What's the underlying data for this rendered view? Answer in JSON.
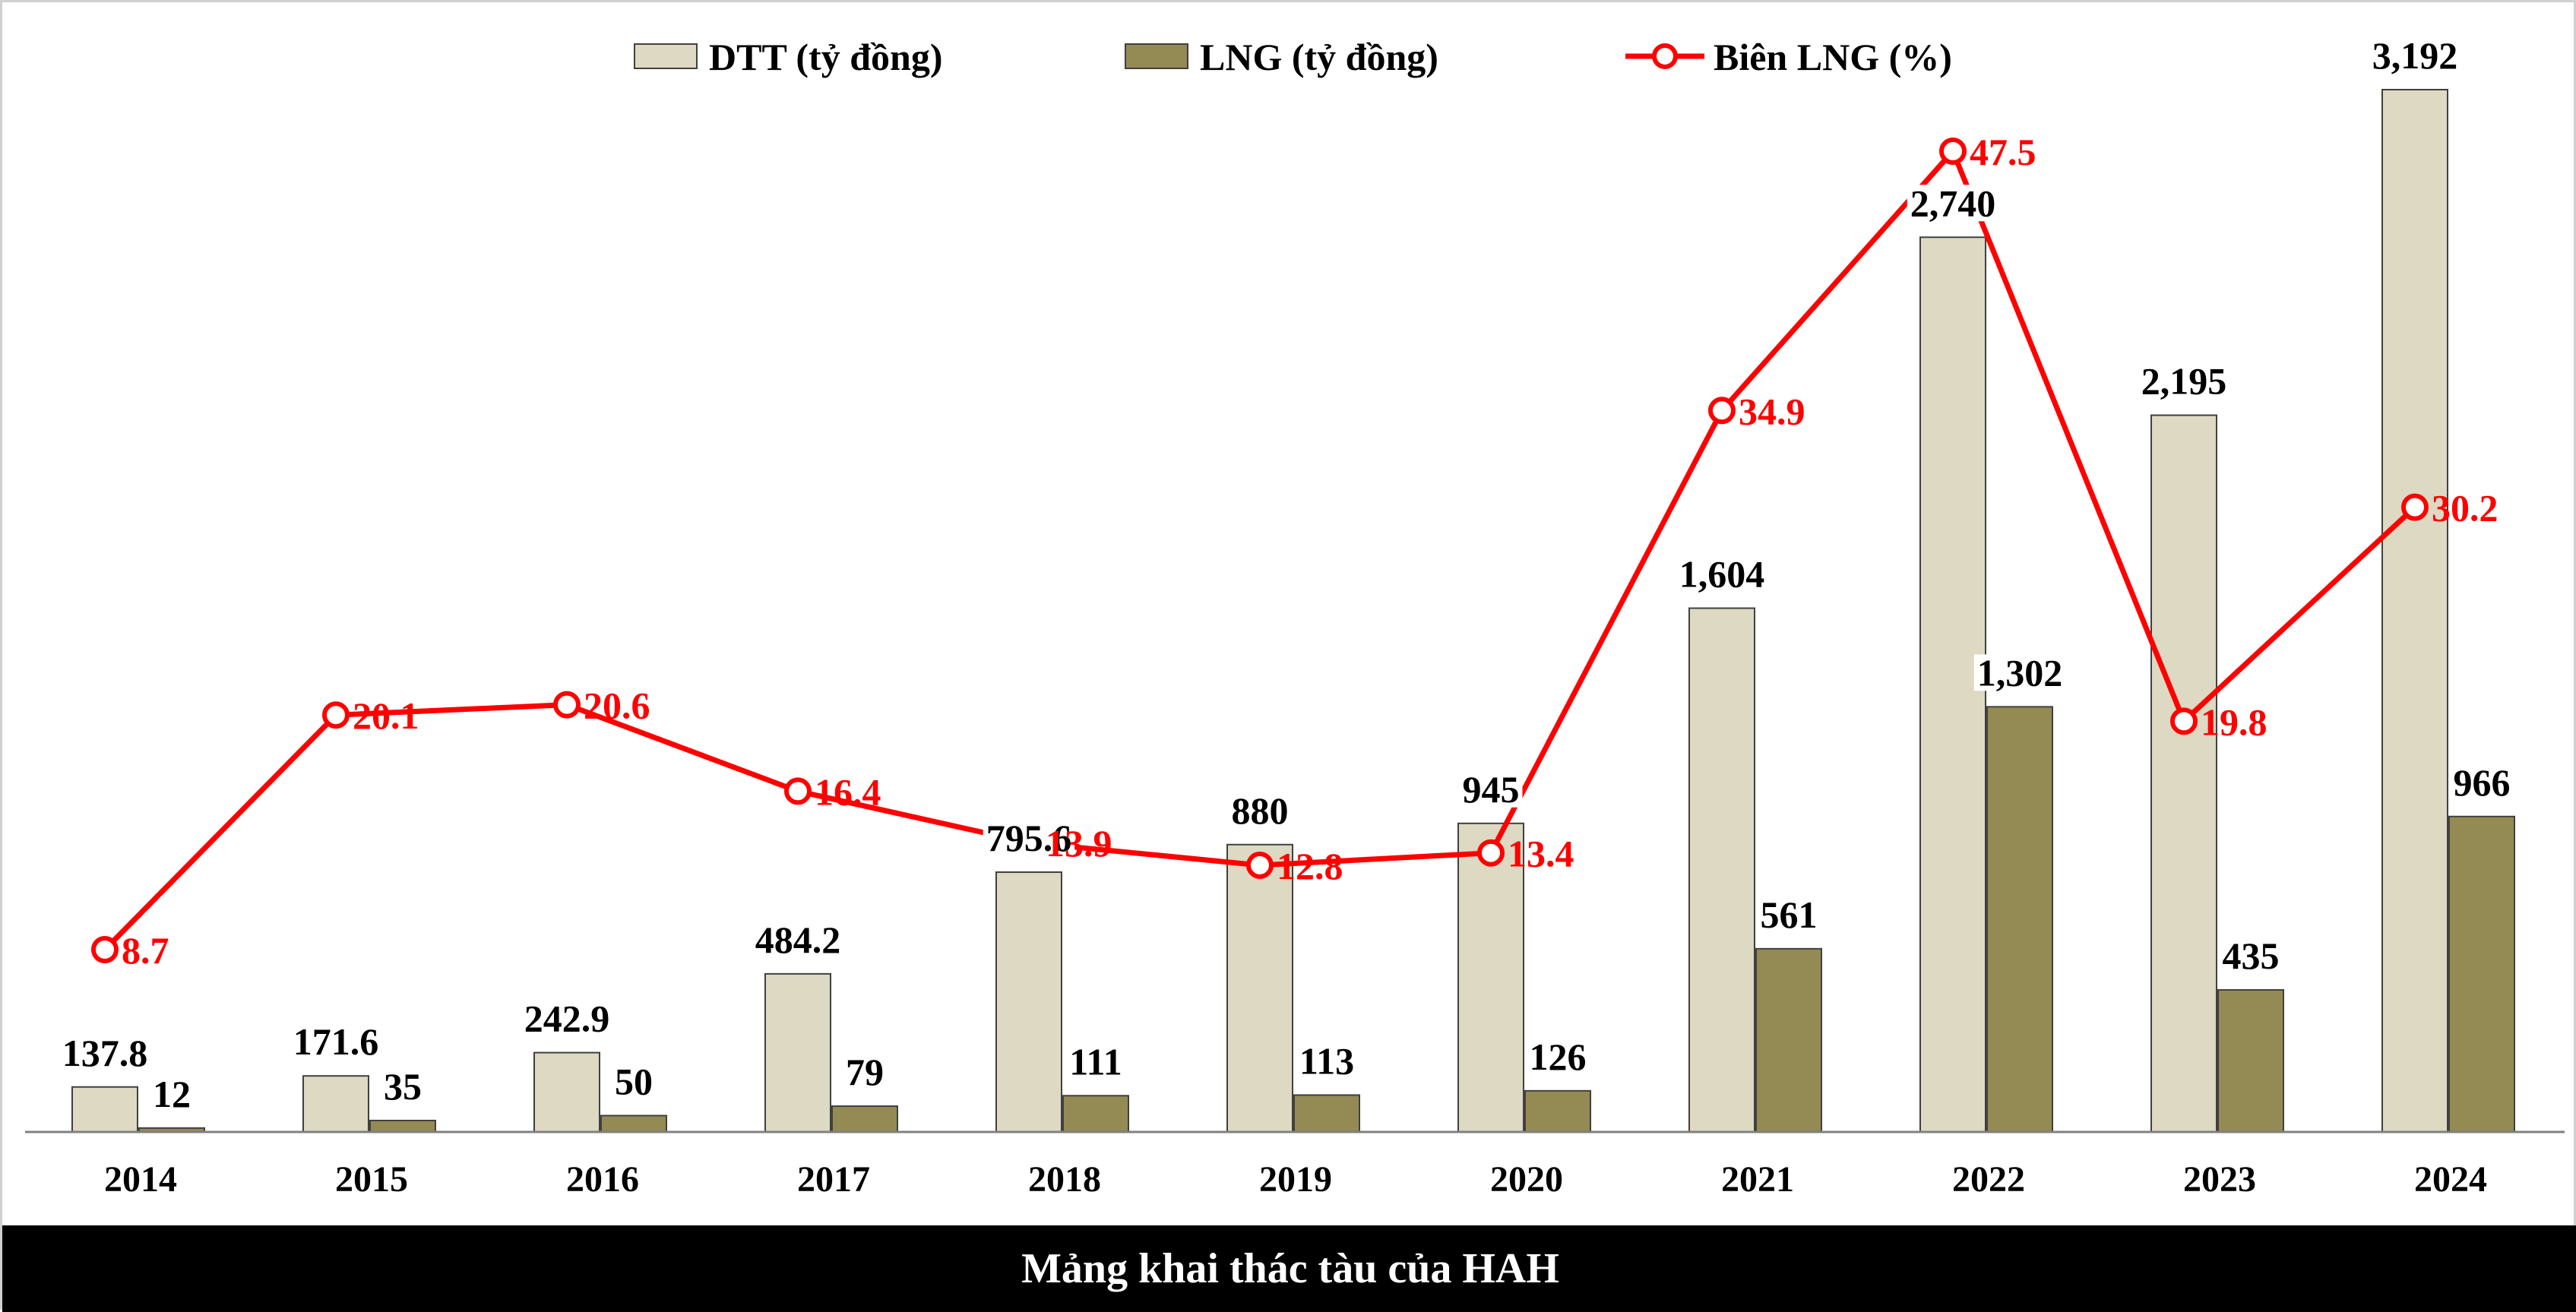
{
  "chart_data": {
    "type": "bar",
    "title": "",
    "caption": "Mảng khai thác tàu của HAH",
    "categories": [
      "2014",
      "2015",
      "2016",
      "2017",
      "2018",
      "2019",
      "2020",
      "2021",
      "2022",
      "2023",
      "2024"
    ],
    "series": [
      {
        "name": "DTT (tỷ đồng)",
        "kind": "bar",
        "axis": "left",
        "color": "#ddd9c3",
        "values": [
          137.8,
          171.6,
          242.9,
          484.2,
          795.6,
          880,
          945,
          1604,
          2740,
          2195,
          3192
        ],
        "labels": [
          "137.8",
          "171.6",
          "242.9",
          "484.2",
          "795.6",
          "880",
          "945",
          "1,604",
          "2,740",
          "2,195",
          "3,192"
        ]
      },
      {
        "name": "LNG (tỷ đồng)",
        "kind": "bar",
        "axis": "left",
        "color": "#948a54",
        "values": [
          12,
          35,
          50,
          79,
          111,
          113,
          126,
          561,
          1302,
          435,
          966
        ],
        "labels": [
          "12",
          "35",
          "50",
          "79",
          "111",
          "113",
          "126",
          "561",
          "1,302",
          "435",
          "966"
        ]
      },
      {
        "name": "Biên LNG (%)",
        "kind": "line",
        "axis": "right",
        "color": "#ff0000",
        "values": [
          8.7,
          20.1,
          20.6,
          16.4,
          13.9,
          12.8,
          13.4,
          34.9,
          47.5,
          19.8,
          30.2
        ],
        "labels": [
          "8.7",
          "20.1",
          "20.6",
          "16.4",
          "13.9",
          "12.8",
          "13.4",
          "34.9",
          "47.5",
          "19.8",
          "30.2"
        ]
      }
    ],
    "ylim_left": [
      0,
      3500
    ],
    "ylim_right": [
      -5,
      53
    ],
    "grid": false,
    "legend": "top-center"
  }
}
